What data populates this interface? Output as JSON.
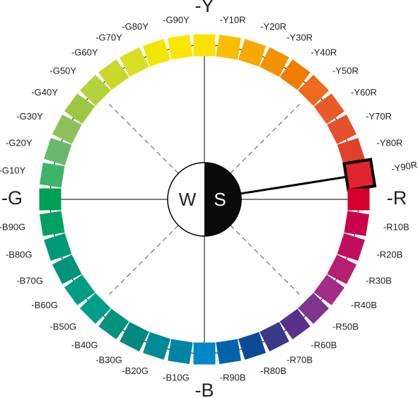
{
  "swatches": [
    {
      "label": "-Y",
      "color": "#fde100"
    },
    {
      "label": "-Y10R",
      "color": "#fbbd00"
    },
    {
      "label": "-Y20R",
      "color": "#f9a800"
    },
    {
      "label": "-Y30R",
      "color": "#f39200"
    },
    {
      "label": "-Y40R",
      "color": "#ef7d00"
    },
    {
      "label": "-Y50R",
      "color": "#ec6b1c"
    },
    {
      "label": "-Y60R",
      "color": "#e95a26"
    },
    {
      "label": "-Y70R",
      "color": "#e6502c"
    },
    {
      "label": "-Y80R",
      "color": "#e2402b"
    },
    {
      "label": "-Y90R",
      "color": "#e1252e"
    },
    {
      "label": "-R",
      "color": "#d6002d"
    },
    {
      "label": "-R10B",
      "color": "#c9004a"
    },
    {
      "label": "-R20B",
      "color": "#c20e5a"
    },
    {
      "label": "-R30B",
      "color": "#b51f70"
    },
    {
      "label": "-R40B",
      "color": "#a42b86"
    },
    {
      "label": "-R50B",
      "color": "#7e3690"
    },
    {
      "label": "-R60B",
      "color": "#5b2f8c"
    },
    {
      "label": "-R70B",
      "color": "#3a3889"
    },
    {
      "label": "-R80B",
      "color": "#0c4a97"
    },
    {
      "label": "-R90B",
      "color": "#0064ac"
    },
    {
      "label": "-B",
      "color": "#0088c6"
    },
    {
      "label": "-B10G",
      "color": "#0084a4"
    },
    {
      "label": "-B20G",
      "color": "#008b96"
    },
    {
      "label": "-B30G",
      "color": "#00887f"
    },
    {
      "label": "-B40G",
      "color": "#00947c"
    },
    {
      "label": "-B50G",
      "color": "#009e8b"
    },
    {
      "label": "-B60G",
      "color": "#009d82"
    },
    {
      "label": "-B70G",
      "color": "#00957b"
    },
    {
      "label": "-B80G",
      "color": "#009a78"
    },
    {
      "label": "-B90G",
      "color": "#00a064"
    },
    {
      "label": "-G",
      "color": "#00a054"
    },
    {
      "label": "-G10Y",
      "color": "#3db468"
    },
    {
      "label": "-G20Y",
      "color": "#68b86e"
    },
    {
      "label": "-G30Y",
      "color": "#8dc05b"
    },
    {
      "label": "-G40Y",
      "color": "#9ec842"
    },
    {
      "label": "-G50Y",
      "color": "#b3d23c"
    },
    {
      "label": "-G60Y",
      "color": "#c9d72a"
    },
    {
      "label": "-G70Y",
      "color": "#d8de24"
    },
    {
      "label": "-G80Y",
      "color": "#f0e600"
    },
    {
      "label": "-G90Y",
      "color": "#fae600"
    }
  ],
  "center": {
    "left": "W",
    "right": "S"
  }
}
